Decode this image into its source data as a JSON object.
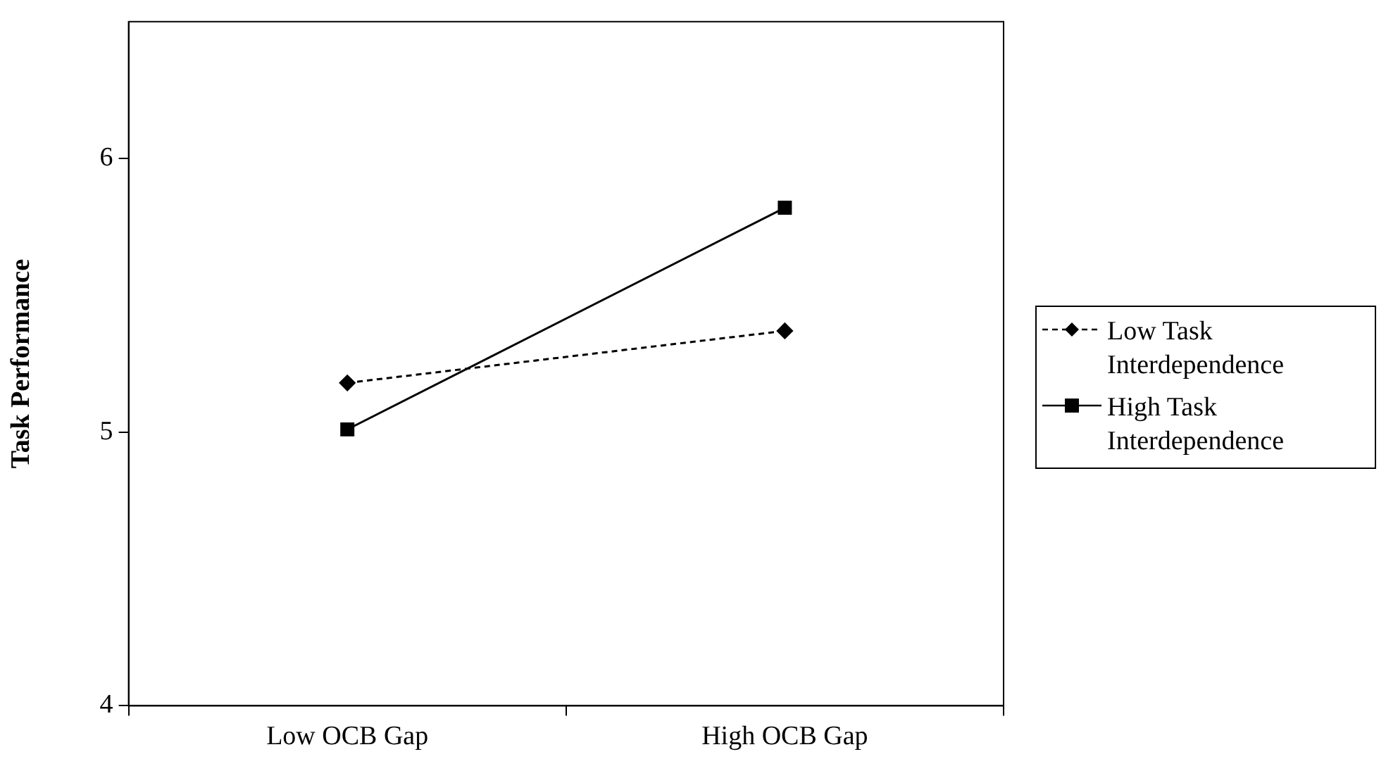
{
  "chart_data": {
    "type": "line",
    "ylabel": "Task Performance",
    "categories": [
      "Low OCB Gap",
      "High OCB Gap"
    ],
    "series": [
      {
        "name": "Low Task Interdependence",
        "color": "#000000",
        "values": [
          5.18,
          5.37
        ],
        "marker": "diamond",
        "line_style": "dashed"
      },
      {
        "name": "High Task Interdependence",
        "color": "#000000",
        "values": [
          5.01,
          5.82
        ],
        "marker": "square",
        "line_style": "solid"
      }
    ],
    "ylim": [
      4,
      6.5
    ],
    "yticks": [
      4,
      5,
      6
    ],
    "grid": false,
    "legend": "right"
  }
}
